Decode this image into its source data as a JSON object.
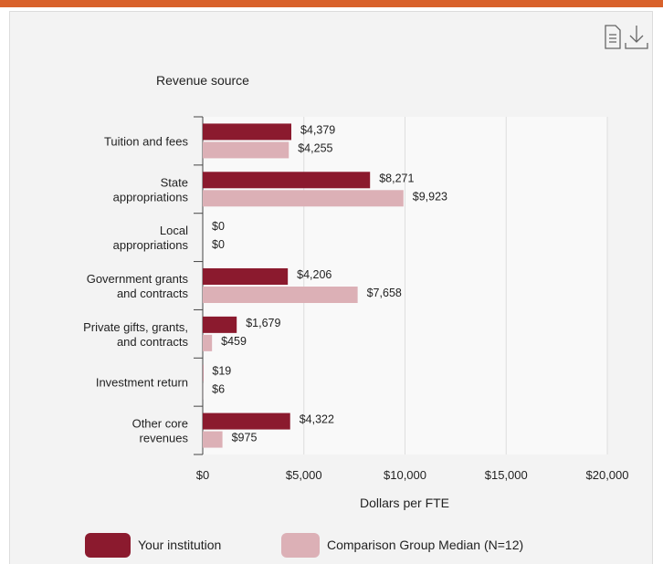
{
  "chart_data": {
    "type": "bar",
    "orientation": "horizontal",
    "title": "Revenue source",
    "x_label": "Dollars per FTE",
    "categories": [
      [
        "Tuition and fees"
      ],
      [
        "State",
        "appropriations"
      ],
      [
        "Local",
        "appropriations"
      ],
      [
        "Government grants",
        "and contracts"
      ],
      [
        "Private gifts, grants,",
        "and contracts"
      ],
      [
        "Investment return"
      ],
      [
        "Other core",
        "revenues"
      ]
    ],
    "series": [
      {
        "name": "Your institution",
        "color": "#8b1a2e",
        "values": [
          4379,
          8271,
          0,
          4206,
          1679,
          19,
          4322
        ],
        "value_labels": [
          "$4,379",
          "$8,271",
          "$0",
          "$4,206",
          "$1,679",
          "$19",
          "$4,322"
        ]
      },
      {
        "name": "Comparison Group Median (N=12)",
        "color": "#dcb0b6",
        "values": [
          4255,
          9923,
          0,
          7658,
          459,
          6,
          975
        ],
        "value_labels": [
          "$4,255",
          "$9,923",
          "$0",
          "$7,658",
          "$459",
          "$6",
          "$975"
        ]
      }
    ],
    "xlim": [
      0,
      20000
    ],
    "xticks": [
      {
        "value": 0,
        "label": "$0"
      },
      {
        "value": 5000,
        "label": "$5,000"
      },
      {
        "value": 10000,
        "label": "$10,000"
      },
      {
        "value": 15000,
        "label": "$15,000"
      },
      {
        "value": 20000,
        "label": "$20,000"
      }
    ],
    "grid": true,
    "legend": "bottom"
  }
}
